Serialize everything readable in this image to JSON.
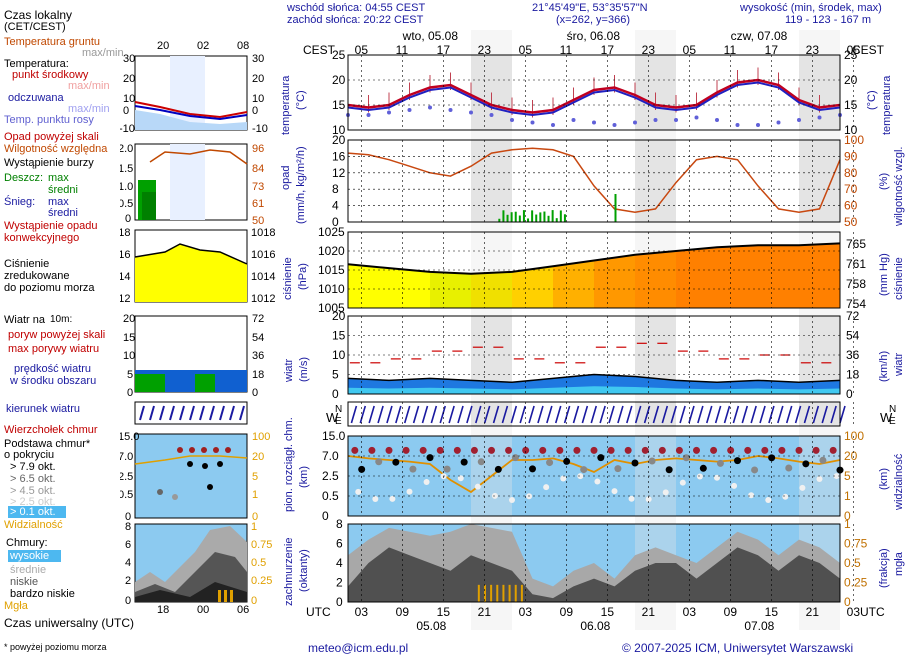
{
  "header": {
    "sunrise": "wschód słońca: 04:55 CEST",
    "sunset": "zachód słońca: 20:22 CEST",
    "coords": "21°45'49\"E, 53°35'57\"N",
    "grid": "(x=262, y=366)",
    "height_title": "wysokość (min, środek, max)",
    "height_values": "119 - 123 - 167 m"
  },
  "top_axis": {
    "left_label": "CEST",
    "right_label": "CEST",
    "day_labels": [
      "wto, 05.08",
      "śro, 06.08",
      "czw, 07.08"
    ],
    "hours": [
      "05",
      "11",
      "17",
      "23",
      "05",
      "11",
      "17",
      "23",
      "05",
      "11",
      "17",
      "23",
      "05"
    ]
  },
  "bottom_axis": {
    "left_label": "UTC",
    "right_label": "UTC",
    "hours": [
      "03",
      "09",
      "15",
      "21",
      "03",
      "09",
      "15",
      "21",
      "03",
      "09",
      "15",
      "21",
      "03"
    ],
    "dates": [
      "05.08",
      "06.08",
      "07.08"
    ]
  },
  "legend": {
    "time_local": "Czas lokalny",
    "time_local_sub": "(CET/CEST)",
    "time_ticks": [
      "20",
      "02",
      "08"
    ],
    "ground_temp": "Temperatura gruntu",
    "ground_temp_sub": "max/min",
    "temp_title": "Temperatura:",
    "temp_mid": "punkt środkowy",
    "temp_maxmin": "max/min",
    "temp_feel": "odczuwana",
    "temp_feel_maxmin": "max/min",
    "dew": "Temp. punktu rosy",
    "temp_ticks": [
      "30",
      "20",
      "10",
      "0",
      "-10"
    ],
    "precip_over": "Opad powyżej skali",
    "humidity": "Wilgotność względna",
    "storm": "Wystąpienie burzy",
    "rain": "Deszcz:",
    "snow": "Śnieg:",
    "max": "max",
    "mean": "średni",
    "precip_occ": "Wystąpienie opadu",
    "convective": "konwekcyjnego",
    "precip_ticks": [
      "2.0",
      "1.5",
      "1.0",
      "0.5",
      "0"
    ],
    "hum_ticks": [
      "96",
      "84",
      "73",
      "61",
      "50"
    ],
    "pressure_1": "Ciśnienie",
    "pressure_2": "zredukowane",
    "pressure_3": "do poziomu morza",
    "press_ticks": [
      "1018",
      "1016",
      "1014",
      "1012"
    ],
    "wind_title": "Wiatr na",
    "wind_height": "10m:",
    "gust_over": "poryw powyżej skali",
    "gust_max": "max porywy wiatru",
    "wind_speed": "prędkość wiatru",
    "wind_area": "w środku obszaru",
    "wind_ticks": [
      "20",
      "15",
      "10",
      "5",
      "0"
    ],
    "wind_kmh_ticks": [
      "72",
      "54",
      "36",
      "18",
      "0"
    ],
    "wind_dir": "kierunek wiatru",
    "cloud_top": "Wierzchołek chmur",
    "cloud_base": "Podstawa chmur*",
    "cloud_base_sub": "o pokryciu",
    "okt": [
      "> 7.9 okt.",
      "> 6.5 okt.",
      "> 4.5 okt.",
      "> 2.5 okt.",
      "> 0.1 okt."
    ],
    "visibility": "Widzialność",
    "cb_ticks": [
      "15.0",
      "7.0",
      "2.5",
      "0.5",
      "0"
    ],
    "vis_ticks": [
      "100",
      "20",
      "5",
      "1",
      "0"
    ],
    "clouds": "Chmury:",
    "high": "wysokie",
    "middle": "średnie",
    "low": "niskie",
    "very_low": "bardzo niskie",
    "fog": "Mgła",
    "cloud_ticks": [
      "8",
      "6",
      "4",
      "2",
      "0"
    ],
    "fog_ticks": [
      "1",
      "0.75",
      "0.5",
      "0.25",
      "0"
    ],
    "time_utc": "Czas uniwersalny (UTC)",
    "utc_ticks": [
      "18",
      "00",
      "06"
    ],
    "footnote": "* powyżej poziomu morza"
  },
  "panel_labels": {
    "temperature": "temperatura",
    "temperature_unit": "(°C)",
    "precip": "opad",
    "precip_unit": "(mm/h, kg/m²/h)",
    "humidity": "wilgotność wzgl.",
    "humidity_unit": "(%)",
    "pressure": "ciśnienie",
    "pressure_unit": "(hPa)",
    "pressure_mm": "(mm Hg)",
    "wind": "wiatr",
    "wind_unit": "(m/s)",
    "wind_kmh": "(km/h)",
    "cloud_base": "pion. rozciągł. chm.",
    "cloud_base_unit": "(km)",
    "visibility": "widzialność",
    "visibility_unit": "(km)",
    "cloudiness": "zachmurzenie",
    "cloudiness_unit": "(oktanty)",
    "fog": "mgła",
    "fog_unit": "(frakcja)"
  },
  "footer": {
    "email": "meteo@icm.edu.pl",
    "copyright": "© 2007-2025 ICM, Uniwersytet Warszawski"
  },
  "chart_data": [
    {
      "type": "line",
      "title": "temperatura",
      "ylabel": "(°C)",
      "x_hours_utc": [
        0,
        3,
        6,
        9,
        12,
        15,
        18,
        21,
        24,
        27,
        30,
        33,
        36,
        39,
        42,
        45,
        48,
        51,
        54,
        57,
        60,
        63,
        66,
        69,
        72
      ],
      "series": [
        {
          "name": "punkt środkowy",
          "values": [
            15,
            14.5,
            15,
            17,
            18.5,
            19,
            17,
            15,
            14,
            13.5,
            14,
            16,
            18,
            18.5,
            17,
            15,
            14.5,
            15,
            17.5,
            19.5,
            20,
            19,
            16,
            14.5,
            15
          ]
        },
        {
          "name": "odczuwana",
          "values": [
            14.5,
            14,
            14.5,
            16.5,
            18,
            18.5,
            16.5,
            14.5,
            13.5,
            13,
            13.5,
            15.5,
            17.5,
            18,
            16.5,
            14.5,
            14,
            14.5,
            17,
            19,
            19.5,
            18.5,
            15.5,
            14,
            14.5
          ]
        },
        {
          "name": "punkt rosy",
          "values": [
            13,
            13,
            13.5,
            14,
            14.5,
            14,
            13.5,
            13,
            12,
            11.5,
            11,
            12,
            11.5,
            11,
            11.5,
            12,
            12,
            12.5,
            12,
            11,
            11,
            11.5,
            12,
            12.5,
            13
          ]
        }
      ],
      "ylim": [
        10,
        25
      ],
      "yticks": [
        10,
        15,
        20,
        25
      ]
    },
    {
      "type": "line",
      "title": "wilgotność wzgl.",
      "x_hours_utc": [
        0,
        3,
        6,
        9,
        12,
        15,
        18,
        21,
        24,
        27,
        30,
        33,
        36,
        39,
        42,
        45,
        48,
        51,
        54,
        57,
        60,
        63,
        66,
        69,
        72
      ],
      "series": [
        {
          "name": "wilgotność",
          "values": [
            92,
            91,
            88,
            84,
            80,
            78,
            84,
            92,
            94,
            95,
            94,
            90,
            72,
            58,
            56,
            58,
            74,
            88,
            90,
            88,
            72,
            58,
            56,
            58,
            88
          ]
        }
      ],
      "ylim": [
        50,
        100
      ],
      "yticks": [
        50,
        60,
        70,
        80,
        90,
        100
      ]
    },
    {
      "type": "area",
      "title": "ciśnienie",
      "ylabel": "(hPa)",
      "x_hours_utc": [
        0,
        6,
        12,
        18,
        24,
        30,
        36,
        42,
        48,
        54,
        60,
        66,
        72
      ],
      "series": [
        {
          "name": "ciśnienie",
          "values": [
            1016.5,
            1015.5,
            1014.5,
            1014,
            1014.5,
            1016,
            1017.5,
            1019,
            1020,
            1021,
            1021.5,
            1021.5,
            1022
          ]
        }
      ],
      "ylim": [
        1005,
        1025
      ],
      "yticks": [
        1005,
        1010,
        1015,
        1020,
        1025
      ]
    },
    {
      "type": "area",
      "title": "wiatr",
      "ylabel": "(m/s)",
      "x_hours_utc": [
        0,
        6,
        12,
        18,
        24,
        30,
        36,
        42,
        48,
        54,
        60,
        66,
        72
      ],
      "series": [
        {
          "name": "prędkość wiatru",
          "values": [
            4,
            3.5,
            4,
            3.5,
            3,
            4,
            5,
            4.5,
            3.5,
            3,
            3.5,
            3,
            3.5
          ]
        },
        {
          "name": "max porywy",
          "values": [
            8,
            9,
            11,
            12,
            9,
            8,
            12,
            13,
            11,
            9,
            10,
            8,
            7
          ]
        }
      ],
      "ylim": [
        0,
        20
      ],
      "yticks": [
        0,
        5,
        10,
        15,
        20
      ]
    }
  ]
}
